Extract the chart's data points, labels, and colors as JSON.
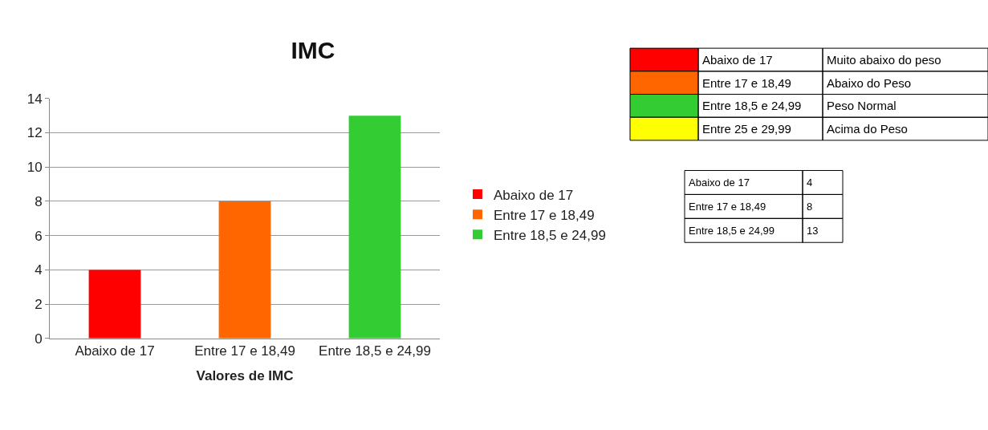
{
  "chart_data": [
    {
      "type": "bar",
      "title": "IMC",
      "xlabel": "Valores de IMC",
      "categories": [
        "Abaixo de 17",
        "Entre 17 e 18,49",
        "Entre 18,5 e 24,99"
      ],
      "series": [
        {
          "name": "Abaixo de 17",
          "color": "#ff0000",
          "values": [
            4,
            null,
            null
          ]
        },
        {
          "name": "Entre 17 e 18,49",
          "color": "#ff6600",
          "values": [
            null,
            8,
            null
          ]
        },
        {
          "name": "Entre 18,5 e 24,99",
          "color": "#33cc33",
          "values": [
            null,
            null,
            13
          ]
        }
      ],
      "ylim": [
        0,
        14
      ],
      "yticks": [
        0,
        2,
        4,
        6,
        8,
        10,
        12,
        14
      ],
      "grid": "y",
      "legend": "right"
    },
    {
      "type": "other",
      "annotations": [
        "Abaixo de 17",
        "Muito abaixo do peso",
        "Entre 17 e 18,49",
        "Abaixo do Peso",
        "Entre 18,5 e 24,99",
        "Peso Normal",
        "Entre 25 e 29,99",
        "Acima do Peso"
      ],
      "colors": [
        "#ff0000",
        "#ff6600",
        "#33cc33",
        "#ffff00"
      ]
    },
    {
      "type": "other",
      "annotations": [
        "Abaixo de 17",
        "4",
        "Entre 17 e 18,49",
        "8",
        "Entre 18,5 e 24,99",
        "13"
      ]
    }
  ]
}
